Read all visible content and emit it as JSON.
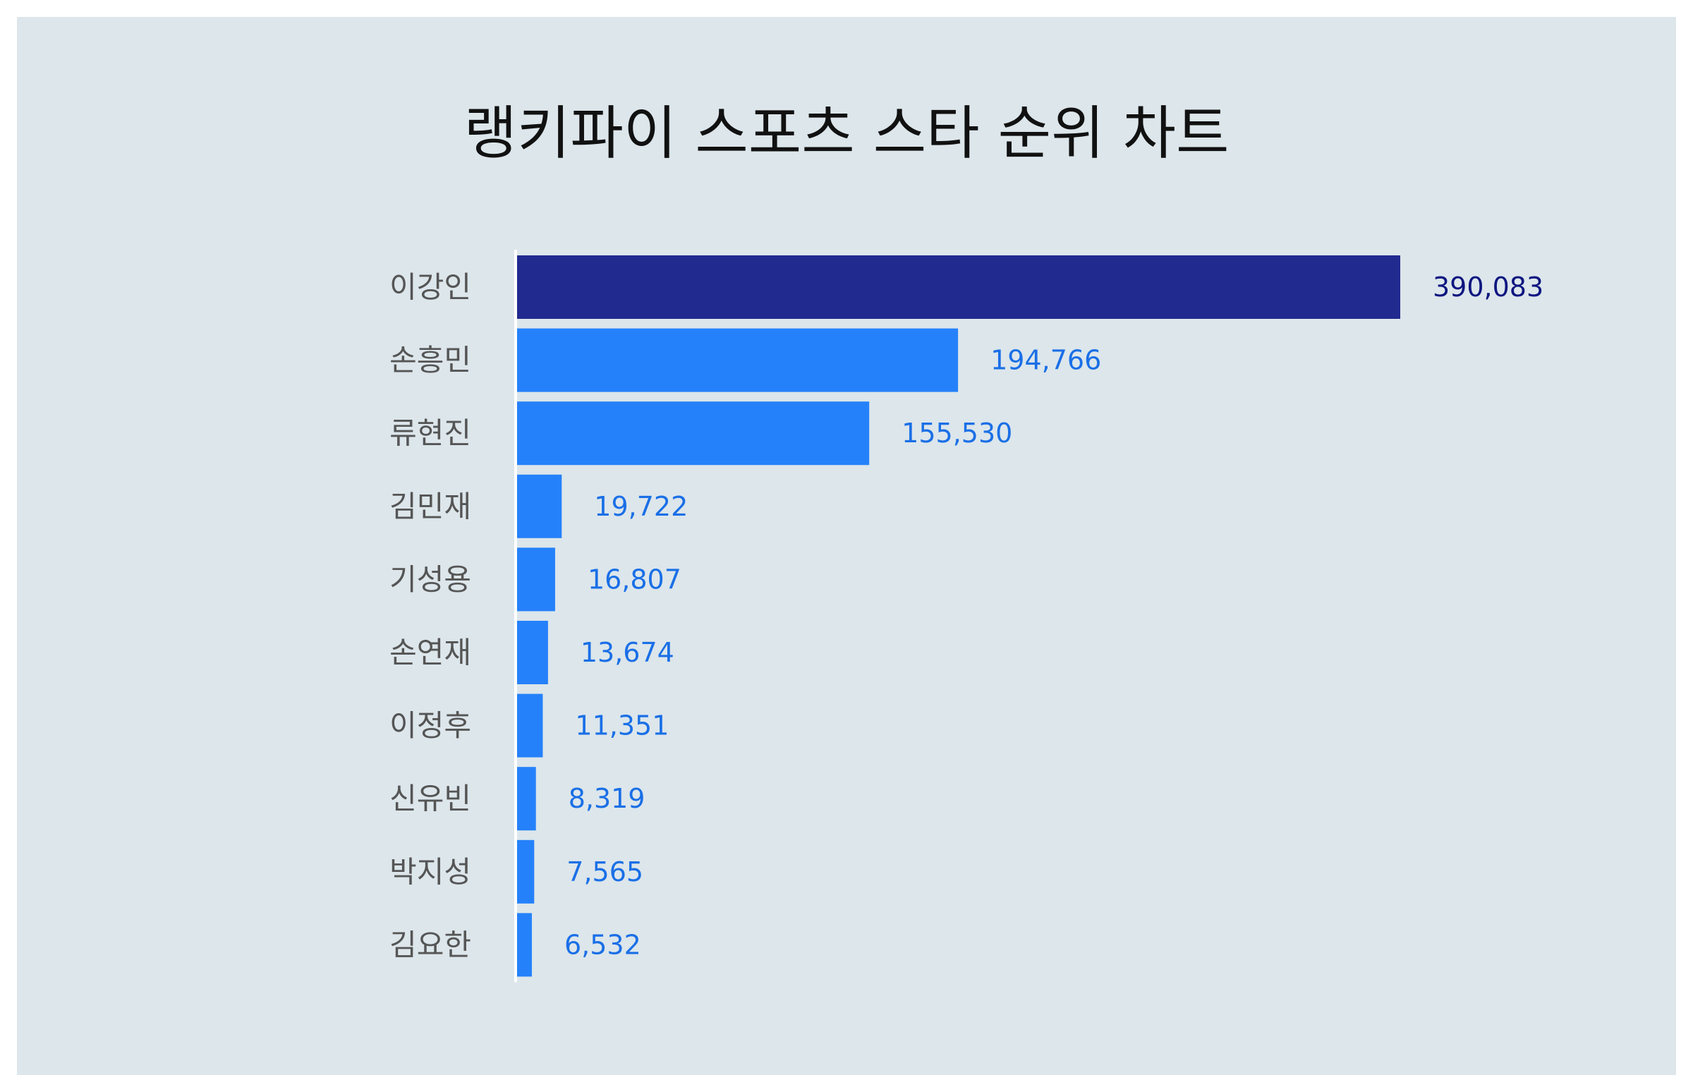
{
  "chart_data": {
    "type": "bar",
    "orientation": "horizontal",
    "title": "랭키파이 스포츠 스타 순위 차트",
    "xlabel": "",
    "ylabel": "",
    "categories": [
      "이강인",
      "손흥민",
      "류현진",
      "김민재",
      "기성용",
      "손연재",
      "이정후",
      "신유빈",
      "박지성",
      "김요한"
    ],
    "values": [
      390083,
      194766,
      155530,
      19722,
      16807,
      13674,
      11351,
      8319,
      7565,
      6532
    ],
    "value_labels": [
      "390,083",
      "194,766",
      "155,530",
      "19,722",
      "16,807",
      "13,674",
      "11,351",
      "8,319",
      "7,565",
      "6,532"
    ],
    "xlim": [
      0,
      390083
    ],
    "grid": false,
    "legend": "none"
  },
  "colors": {
    "background": "#dce6eb",
    "top_bar": "#212a8f",
    "top_label": "#0e1680",
    "bar": "#2581fa",
    "bar_label": "#1a6fe6",
    "category_label": "#555555",
    "axis_line": "#ffffff"
  }
}
